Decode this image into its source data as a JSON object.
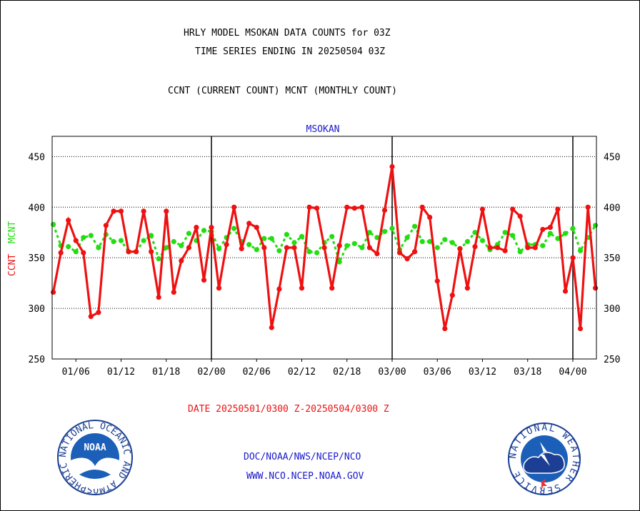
{
  "header": {
    "title1": "HRLY MODEL MSOKAN DATA COUNTS for 03Z",
    "title2": "TIME SERIES ENDING IN 20250504 03Z",
    "subtitle": "CCNT (CURRENT COUNT) MCNT (MONTHLY COUNT)"
  },
  "footer": {
    "date_range": "DATE 20250501/0300 Z-20250504/0300 Z",
    "org": "DOC/NOAA/NWS/NCEP/NCO",
    "url": "WWW.NCO.NCEP.NOAA.GOV",
    "noaa_logo_text": "NOAA",
    "noaa_ring_text": "NATIONAL OCEANIC AND ATMOSPHERIC ADMINISTRATION · U.S. DEPARTMENT OF COMMERCE",
    "nws_ring_text": "NATIONAL WEATHER SERVICE"
  },
  "colors": {
    "title": "#000000",
    "station": "#1a1acc",
    "ccnt": "#ee1111",
    "mcnt": "#22dd11",
    "date": "#ee1111",
    "footer_text": "#1a1acc"
  },
  "chart_data": {
    "type": "line",
    "panel_title": "MSOKAN",
    "ylabel_ccnt": "CCNT",
    "ylabel_mcnt": "MCNT",
    "ylim": [
      250,
      470
    ],
    "yticks": [
      250,
      300,
      350,
      400,
      450
    ],
    "grid": true,
    "x_tick_labels": [
      "01/06",
      "01/12",
      "01/18",
      "02/00",
      "02/06",
      "02/12",
      "02/18",
      "03/00",
      "03/06",
      "03/12",
      "03/18",
      "04/00"
    ],
    "day_boundaries": [
      "02/00",
      "03/00",
      "04/00"
    ],
    "x_start": "01/03",
    "x_end": "04/03",
    "series": [
      {
        "name": "CCNT",
        "values": [
          316,
          355,
          387,
          367,
          355,
          292,
          296,
          382,
          396,
          396,
          356,
          356,
          396,
          356,
          311,
          396,
          316,
          347,
          360,
          380,
          328,
          380,
          320,
          363,
          400,
          359,
          384,
          380,
          360,
          281,
          319,
          360,
          360,
          320,
          400,
          399,
          360,
          320,
          362,
          400,
          399,
          400,
          360,
          354,
          397,
          440,
          355,
          349,
          356,
          400,
          390,
          327,
          280,
          313,
          359,
          320,
          361,
          398,
          360,
          360,
          357,
          398,
          391,
          360,
          360,
          378,
          380,
          398,
          317,
          350,
          280,
          400,
          320
        ],
        "note": "hourly values, one per hour from 20250501/0300 Z"
      },
      {
        "name": "MCNT",
        "values": [
          383,
          362,
          361,
          356,
          370,
          372,
          360,
          373,
          366,
          367,
          356,
          356,
          367,
          372,
          349,
          360,
          366,
          362,
          374,
          367,
          377,
          376,
          359,
          370,
          379,
          366,
          363,
          358,
          369,
          369,
          357,
          373,
          365,
          371,
          356,
          355,
          365,
          371,
          346,
          362,
          364,
          360,
          375,
          370,
          376,
          379,
          358,
          370,
          381,
          366,
          366,
          360,
          368,
          365,
          359,
          366,
          375,
          367,
          358,
          363,
          375,
          372,
          356,
          363,
          363,
          362,
          374,
          369,
          374,
          379,
          357,
          370,
          382
        ],
        "note": "hourly values, one per hour from 20250501/0300 Z"
      }
    ]
  }
}
